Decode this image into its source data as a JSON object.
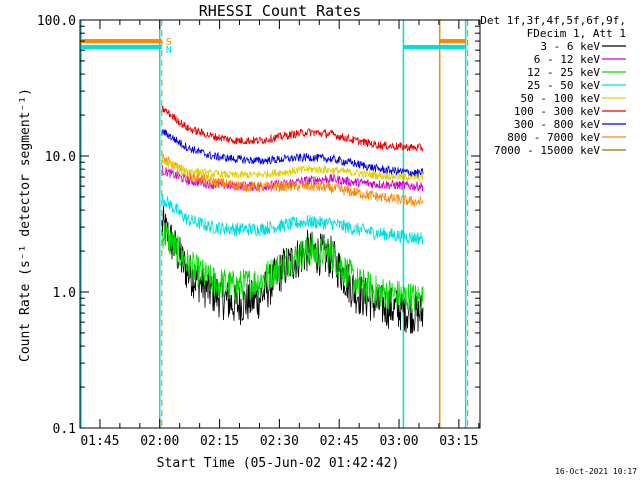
{
  "chart_data": {
    "type": "line",
    "title": "RHESSI Count Rates",
    "xlabel": "Start Time (05-Jun-02 01:42:42)",
    "ylabel": "Count Rate (s⁻¹ detector segment⁻¹)",
    "yscale": "log",
    "ylim": [
      0.1,
      100.0
    ],
    "y_ticks": [
      {
        "value": 0.1,
        "label": "0.1"
      },
      {
        "value": 1.0,
        "label": "1.0"
      },
      {
        "value": 10.0,
        "label": "10.0"
      },
      {
        "value": 100.0,
        "label": "100.0"
      }
    ],
    "x_range_min": [
      100.0,
      200.3
    ],
    "x_ticks": [
      {
        "value": 105,
        "label": "01:45"
      },
      {
        "value": 120,
        "label": "02:00"
      },
      {
        "value": 135,
        "label": "02:15"
      },
      {
        "value": 150,
        "label": "02:30"
      },
      {
        "value": 165,
        "label": "02:45"
      },
      {
        "value": 180,
        "label": "03:00"
      },
      {
        "value": 195,
        "label": "03:15"
      }
    ],
    "x_minor_step_min": 5,
    "data_interval_min": [
      120.5,
      186.2
    ],
    "legend": {
      "placement": "right",
      "header": [
        "Det 1f,3f,4f,5f,6f,9f,",
        "FDecim 1, Att 1"
      ]
    },
    "series": [
      {
        "name": "3 - 6 keV",
        "color": "#000000",
        "values": [
          3.0,
          1.4,
          1.0,
          0.8,
          0.9,
          1.5,
          2.0,
          1.8,
          1.0,
          0.8,
          0.7
        ]
      },
      {
        "name": "6 - 12 keV",
        "color": "#d000d0",
        "values": [
          7.8,
          6.6,
          6.2,
          6.0,
          6.0,
          6.2,
          6.6,
          6.8,
          6.4,
          6.2,
          6.0
        ]
      },
      {
        "name": "12 - 25 keV",
        "color": "#00dd00",
        "values": [
          2.7,
          1.6,
          1.2,
          1.1,
          1.2,
          1.6,
          2.0,
          1.9,
          1.2,
          1.0,
          0.9
        ]
      },
      {
        "name": "25 - 50 keV",
        "color": "#00dede",
        "values": [
          4.8,
          3.4,
          3.0,
          2.9,
          2.9,
          3.1,
          3.3,
          3.2,
          2.9,
          2.7,
          2.5
        ]
      },
      {
        "name": "50 - 100 keV",
        "color": "#e0d000",
        "values": [
          9.0,
          7.8,
          7.4,
          7.2,
          7.3,
          7.6,
          8.0,
          7.9,
          7.5,
          7.2,
          7.0
        ]
      },
      {
        "name": "100 - 300 keV",
        "color": "#ee0000",
        "values": [
          22.0,
          16.0,
          14.0,
          13.0,
          13.0,
          14.0,
          15.0,
          14.5,
          13.0,
          12.0,
          11.5
        ]
      },
      {
        "name": "300 - 800 keV",
        "color": "#0000ee",
        "values": [
          15.0,
          11.5,
          10.0,
          9.5,
          9.2,
          9.5,
          9.8,
          9.5,
          8.8,
          8.0,
          7.5
        ]
      },
      {
        "name": "800 - 7000 keV",
        "color": "#ff8800",
        "values": [
          9.5,
          7.2,
          6.5,
          6.1,
          5.9,
          6.0,
          6.0,
          5.8,
          5.4,
          5.0,
          4.6
        ]
      },
      {
        "name": "7000 - 15000 keV",
        "color": "#8b7500",
        "values": []
      }
    ],
    "x_sample_min": [
      121,
      127,
      133,
      139,
      145,
      151,
      157,
      163,
      169,
      175,
      184
    ],
    "markers": [
      {
        "label": "S",
        "color": "#ff8800"
      },
      {
        "label": "N",
        "color": "#00dede"
      }
    ],
    "footer": "16-Oct-2021 10:17"
  }
}
